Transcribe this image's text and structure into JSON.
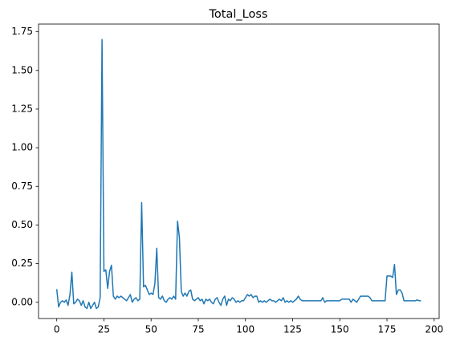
{
  "chart_data": {
    "type": "line",
    "title": "Total_Loss",
    "x": [
      0,
      1,
      2,
      3,
      4,
      5,
      6,
      7,
      8,
      9,
      10,
      11,
      12,
      13,
      14,
      15,
      16,
      17,
      18,
      19,
      20,
      21,
      22,
      23,
      24,
      25,
      26,
      27,
      28,
      29,
      30,
      31,
      32,
      33,
      34,
      35,
      36,
      37,
      38,
      39,
      40,
      41,
      42,
      43,
      44,
      45,
      46,
      47,
      48,
      49,
      50,
      51,
      52,
      53,
      54,
      55,
      56,
      57,
      58,
      59,
      60,
      61,
      62,
      63,
      64,
      65,
      66,
      67,
      68,
      69,
      70,
      71,
      72,
      73,
      74,
      75,
      76,
      77,
      78,
      79,
      80,
      81,
      82,
      83,
      84,
      85,
      86,
      87,
      88,
      89,
      90,
      91,
      92,
      93,
      94,
      95,
      96,
      97,
      98,
      99,
      100,
      101,
      102,
      103,
      104,
      105,
      106,
      107,
      108,
      109,
      110,
      111,
      112,
      113,
      114,
      115,
      116,
      117,
      118,
      119,
      120,
      121,
      122,
      123,
      124,
      125,
      126,
      127,
      128,
      129,
      130,
      131,
      132,
      133,
      134,
      135,
      136,
      137,
      138,
      139,
      140,
      141,
      142,
      143,
      144,
      145,
      146,
      147,
      148,
      149,
      150,
      151,
      152,
      153,
      154,
      155,
      156,
      157,
      158,
      159,
      160,
      161,
      162,
      163,
      164,
      165,
      166,
      167,
      168,
      169,
      170,
      171,
      172,
      173,
      174,
      175,
      176,
      177,
      178,
      179,
      180,
      181,
      182,
      183,
      184,
      185,
      186,
      187,
      188,
      189,
      190,
      191,
      192,
      193
    ],
    "series": [
      {
        "color": "#1f77b4",
        "values": [
          0.085,
          -0.03,
          0,
          0.01,
          0,
          0.015,
          -0.02,
          0.05,
          0.195,
          -0.01,
          0,
          0.02,
          0.01,
          -0.02,
          0.01,
          -0.03,
          -0.04,
          0,
          -0.04,
          -0.02,
          0,
          -0.04,
          -0.03,
          0.03,
          1.7,
          0.2,
          0.21,
          0.09,
          0.2,
          0.24,
          0.04,
          0.02,
          0.04,
          0.03,
          0.04,
          0.03,
          0.02,
          0.01,
          0.03,
          0.05,
          0,
          0.02,
          0.03,
          0.01,
          0.02,
          0.645,
          0.1,
          0.11,
          0.08,
          0.05,
          0.06,
          0.05,
          0.12,
          0.35,
          0.03,
          0.02,
          0.04,
          0.01,
          0,
          0.02,
          0.03,
          0.02,
          0.04,
          0.02,
          0.525,
          0.42,
          0.07,
          0.04,
          0.06,
          0.04,
          0.07,
          0.08,
          0.02,
          0.01,
          0.02,
          0.03,
          0.01,
          0.02,
          -0.01,
          0.02,
          0.01,
          0.02,
          0,
          -0.01,
          0.02,
          0.03,
          0,
          -0.02,
          0.02,
          0.04,
          -0.02,
          0.02,
          0.01,
          0.03,
          0.02,
          0,
          0.01,
          0,
          0.01,
          0.01,
          0.03,
          0.05,
          0.04,
          0.05,
          0.03,
          0.04,
          0.04,
          0,
          0.01,
          0,
          0.01,
          0,
          0.01,
          0.02,
          0.01,
          0.01,
          0,
          0.01,
          0.02,
          0.01,
          0.03,
          0,
          0.01,
          0,
          0.01,
          0,
          0.01,
          0.02,
          0.04,
          0.02,
          0.01,
          0.01,
          0.01,
          0.01,
          0.01,
          0.01,
          0.01,
          0.01,
          0.01,
          0.01,
          0.01,
          0.03,
          0,
          0.01,
          0.01,
          0.01,
          0.01,
          0.01,
          0.01,
          0.01,
          0.01,
          0.02,
          0.02,
          0.02,
          0.02,
          0.02,
          0,
          0.02,
          0.01,
          0,
          0.02,
          0.04,
          0.04,
          0.04,
          0.04,
          0.04,
          0.03,
          0.01,
          0.01,
          0.01,
          0.01,
          0.01,
          0.01,
          0.01,
          0.01,
          0.17,
          0.17,
          0.17,
          0.16,
          0.245,
          0.05,
          0.08,
          0.08,
          0.06,
          0.01,
          0.01,
          0.01,
          0.01,
          0.01,
          0.01,
          0.01,
          0.015,
          0.01,
          0.01
        ]
      }
    ],
    "xlim": [
      -9.65,
      202.65
    ],
    "xticks": [
      0,
      25,
      50,
      75,
      100,
      125,
      150,
      175,
      200
    ],
    "ylim": [
      -0.105,
      1.8
    ],
    "yticks": [
      {
        "value": 0,
        "label": "0.00"
      },
      {
        "value": 0.25,
        "label": "0.25"
      },
      {
        "value": 0.5,
        "label": "0.50"
      },
      {
        "value": 0.75,
        "label": "0.75"
      },
      {
        "value": 1,
        "label": "1.00"
      },
      {
        "value": 1.25,
        "label": "1.25"
      },
      {
        "value": 1.5,
        "label": "1.50"
      },
      {
        "value": 1.75,
        "label": "1.75"
      }
    ],
    "grid": false
  }
}
